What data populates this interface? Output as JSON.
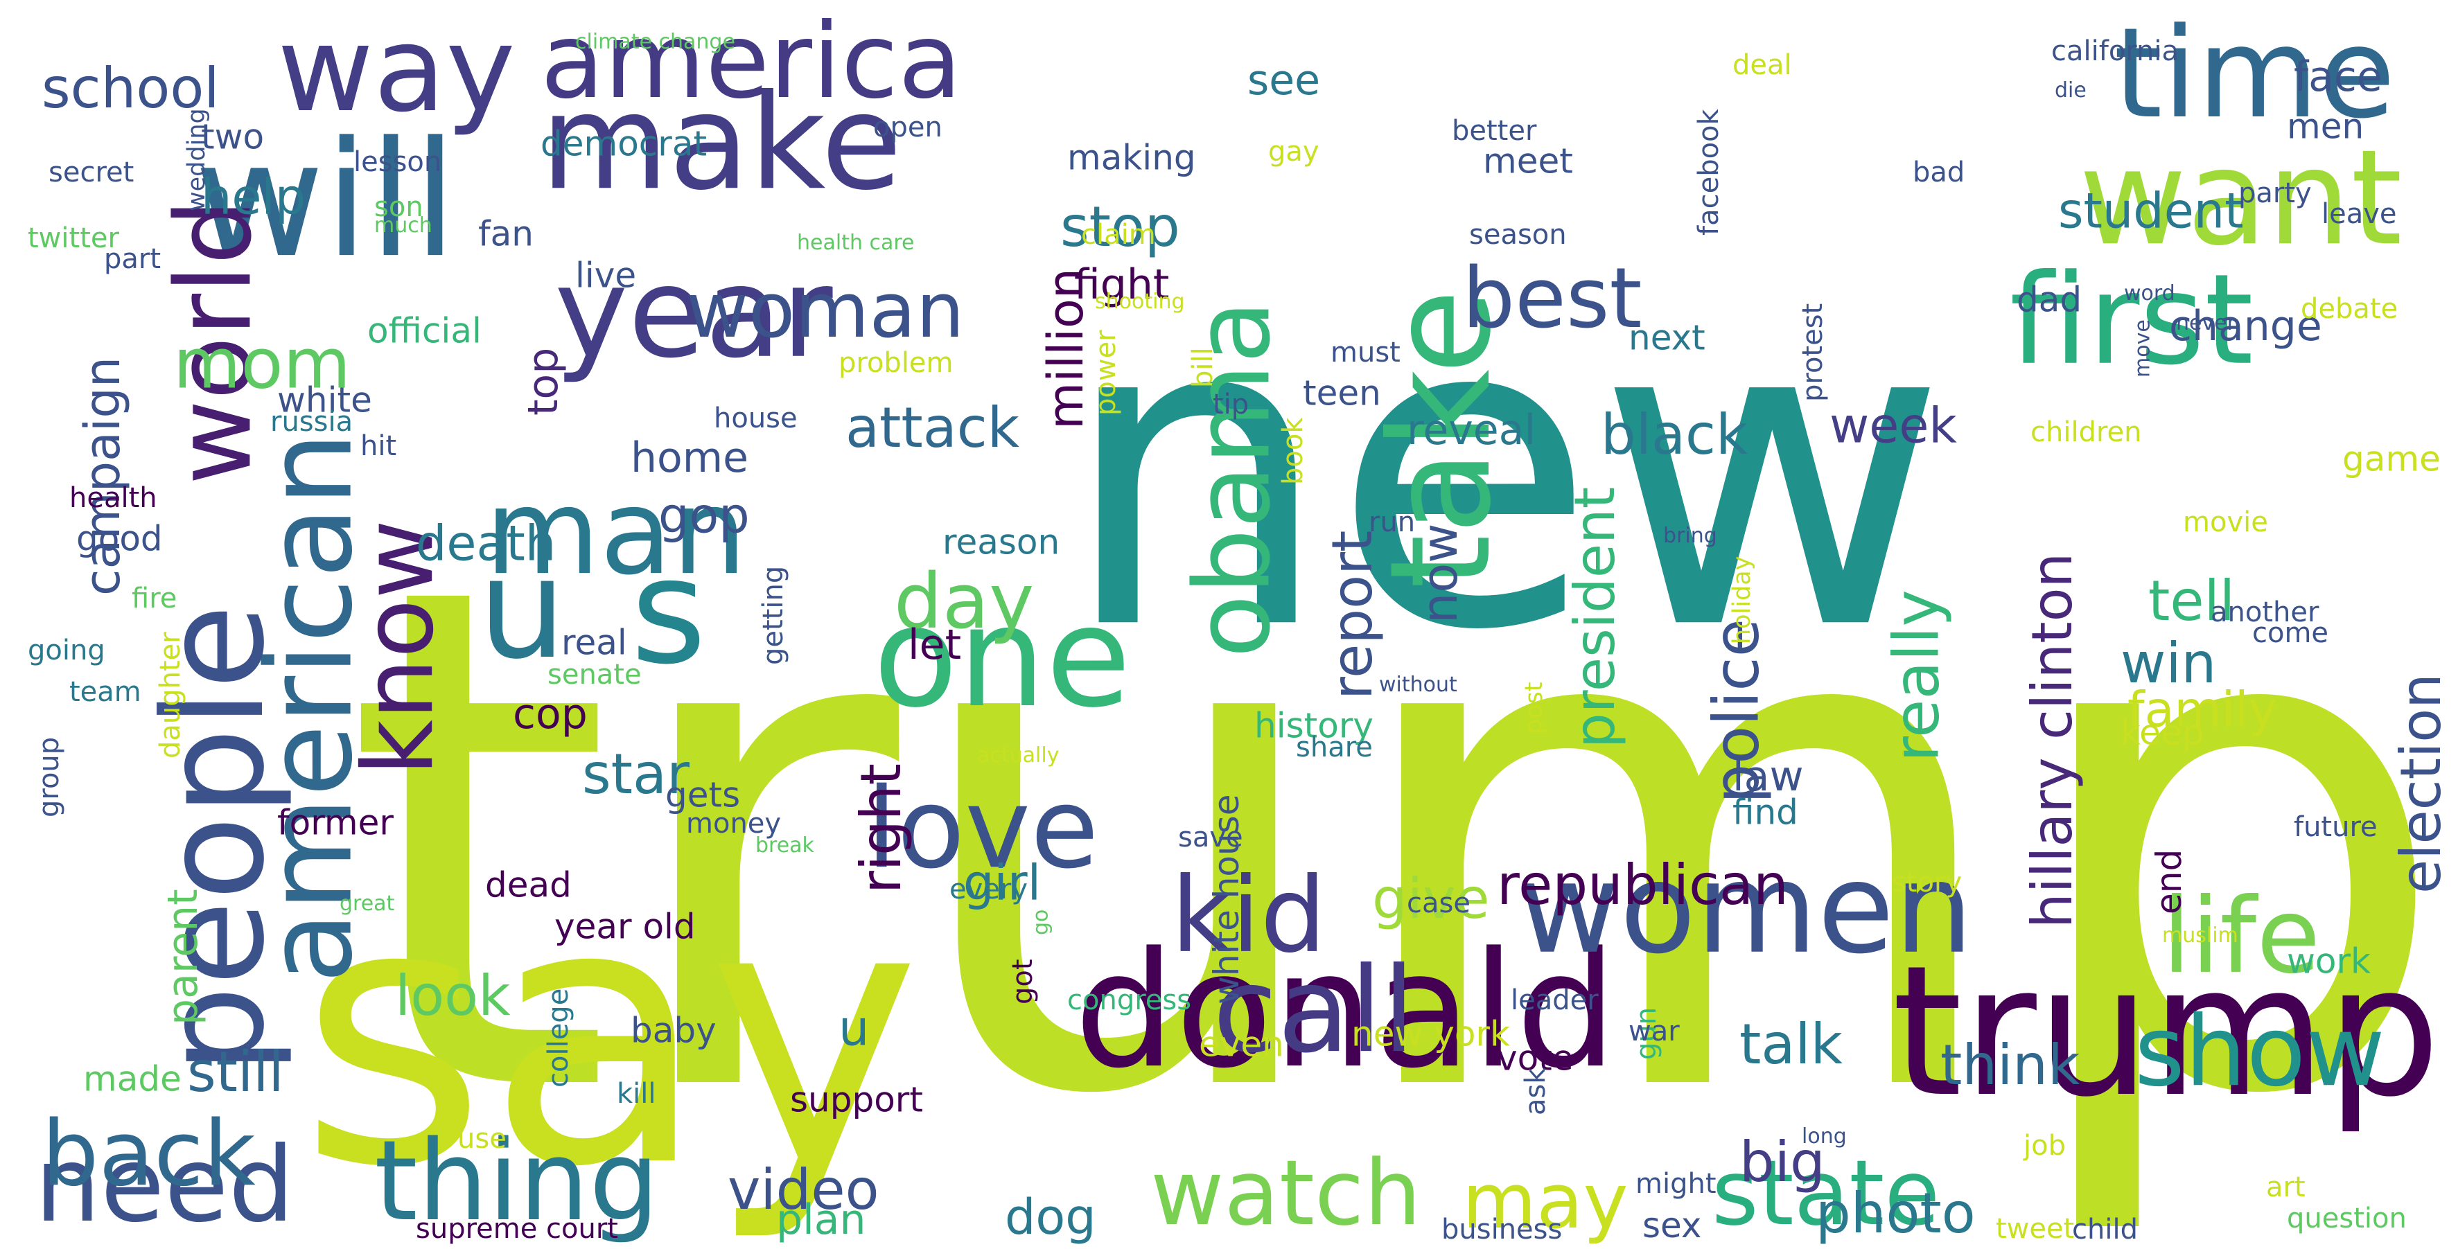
{
  "words": [
    {
      "text": "trump",
      "color": "#bddf26"
    },
    {
      "text": "new",
      "color": "#21918c"
    },
    {
      "text": "say",
      "color": "#c8e020"
    },
    {
      "text": "donald",
      "color": "#440154"
    },
    {
      "text": "trump",
      "color": "#440154"
    },
    {
      "text": "will",
      "color": "#31688e"
    },
    {
      "text": "way",
      "color": "#433e85"
    },
    {
      "text": "make",
      "color": "#433e85"
    },
    {
      "text": "time",
      "color": "#31688e"
    },
    {
      "text": "want",
      "color": "#a0da39"
    },
    {
      "text": "first",
      "color": "#29af7f"
    },
    {
      "text": "year",
      "color": "#433e85"
    },
    {
      "text": "america",
      "color": "#443b84"
    },
    {
      "text": "american",
      "color": "#31688e"
    },
    {
      "text": "people",
      "color": "#3b528b"
    },
    {
      "text": "world",
      "color": "#481f70"
    },
    {
      "text": "man",
      "color": "#2a788e"
    },
    {
      "text": "u",
      "color": "#2a788e"
    },
    {
      "text": "s",
      "color": "#25858e"
    },
    {
      "text": "one",
      "color": "#35b779"
    },
    {
      "text": "love",
      "color": "#3b528b"
    },
    {
      "text": "take",
      "color": "#35b779"
    },
    {
      "text": "obama",
      "color": "#35b779"
    },
    {
      "text": "women",
      "color": "#3b528b"
    },
    {
      "text": "call",
      "color": "#443b84"
    },
    {
      "text": "kid",
      "color": "#433e85"
    },
    {
      "text": "need",
      "color": "#3b528b"
    },
    {
      "text": "thing",
      "color": "#2a788e"
    },
    {
      "text": "back",
      "color": "#31688e"
    },
    {
      "text": "know",
      "color": "#481f70"
    },
    {
      "text": "woman",
      "color": "#3b528b"
    },
    {
      "text": "best",
      "color": "#3b528b"
    },
    {
      "text": "show",
      "color": "#21918c"
    },
    {
      "text": "life",
      "color": "#7ad151"
    },
    {
      "text": "watch",
      "color": "#7ad151"
    },
    {
      "text": "state",
      "color": "#29af7f"
    },
    {
      "text": "day",
      "color": "#5ec962"
    },
    {
      "text": "mom",
      "color": "#5ec962"
    },
    {
      "text": "school",
      "color": "#3b528b"
    },
    {
      "text": "campaign",
      "color": "#3b528b"
    },
    {
      "text": "parent",
      "color": "#5ec962"
    },
    {
      "text": "still",
      "color": "#31688e"
    },
    {
      "text": "look",
      "color": "#5ec962"
    },
    {
      "text": "video",
      "color": "#3b528b"
    },
    {
      "text": "may",
      "color": "#c8e020"
    },
    {
      "text": "photo",
      "color": "#2a788e"
    },
    {
      "text": "republican",
      "color": "#440154"
    },
    {
      "text": "hillary clinton",
      "color": "#482878"
    },
    {
      "text": "police",
      "color": "#3b528b"
    },
    {
      "text": "election",
      "color": "#3b528b"
    },
    {
      "text": "president",
      "color": "#35b779"
    },
    {
      "text": "report",
      "color": "#3b528b"
    },
    {
      "text": "really",
      "color": "#35b779"
    },
    {
      "text": "million",
      "color": "#440154"
    },
    {
      "text": "attack",
      "color": "#31688e"
    },
    {
      "text": "death",
      "color": "#2a788e"
    },
    {
      "text": "star",
      "color": "#2a788e"
    },
    {
      "text": "right",
      "color": "#440154"
    },
    {
      "text": "black",
      "color": "#2a788e"
    },
    {
      "text": "week",
      "color": "#433e85"
    },
    {
      "text": "tell",
      "color": "#35b779"
    },
    {
      "text": "win",
      "color": "#2a788e"
    },
    {
      "text": "family",
      "color": "#c8e020"
    },
    {
      "text": "talk",
      "color": "#2a788e"
    },
    {
      "text": "think",
      "color": "#31688e"
    },
    {
      "text": "big",
      "color": "#433e85"
    },
    {
      "text": "dog",
      "color": "#2a788e"
    },
    {
      "text": "give",
      "color": "#a0da39"
    },
    {
      "text": "help",
      "color": "#2a788e"
    },
    {
      "text": "stop",
      "color": "#2a788e"
    },
    {
      "text": "student",
      "color": "#2a788e"
    },
    {
      "text": "face",
      "color": "#3b528b"
    },
    {
      "text": "gop",
      "color": "#3b528b"
    },
    {
      "text": "home",
      "color": "#3b528b"
    },
    {
      "text": "now",
      "color": "#3b528b"
    },
    {
      "text": "girl",
      "color": "#2a788e"
    },
    {
      "text": "u",
      "color": "#2a788e"
    },
    {
      "text": "fight",
      "color": "#440154"
    },
    {
      "text": "change",
      "color": "#3b528b"
    },
    {
      "text": "see",
      "color": "#2a788e"
    },
    {
      "text": "two",
      "color": "#3b528b"
    },
    {
      "text": "democrat",
      "color": "#2a788e"
    },
    {
      "text": "making",
      "color": "#3b528b"
    },
    {
      "text": "meet",
      "color": "#3b528b"
    },
    {
      "text": "men",
      "color": "#3b528b"
    },
    {
      "text": "fan",
      "color": "#3b528b"
    },
    {
      "text": "live",
      "color": "#3b528b"
    },
    {
      "text": "official",
      "color": "#35b779"
    },
    {
      "text": "white",
      "color": "#3b528b"
    },
    {
      "text": "top",
      "color": "#482878"
    },
    {
      "text": "good",
      "color": "#3b528b"
    },
    {
      "text": "reveal",
      "color": "#2a788e"
    },
    {
      "text": "next",
      "color": "#2a788e"
    },
    {
      "text": "teen",
      "color": "#3b528b"
    },
    {
      "text": "must",
      "color": "#3b528b"
    },
    {
      "text": "dad",
      "color": "#3b528b"
    },
    {
      "text": "game",
      "color": "#c8e020"
    },
    {
      "text": "reason",
      "color": "#2a788e"
    },
    {
      "text": "let",
      "color": "#440154"
    },
    {
      "text": "getting",
      "color": "#3b528b"
    },
    {
      "text": "history",
      "color": "#35b779"
    },
    {
      "text": "share",
      "color": "#2a788e"
    },
    {
      "text": "cop",
      "color": "#440154"
    },
    {
      "text": "real",
      "color": "#3b528b"
    },
    {
      "text": "gets",
      "color": "#3b528b"
    },
    {
      "text": "former",
      "color": "#440154"
    },
    {
      "text": "white house",
      "color": "#3b528b"
    },
    {
      "text": "law",
      "color": "#3b528b"
    },
    {
      "text": "find",
      "color": "#2a788e"
    },
    {
      "text": "keep",
      "color": "#c8e020"
    },
    {
      "text": "work",
      "color": "#35b779"
    },
    {
      "text": "end",
      "color": "#440154"
    },
    {
      "text": "dead",
      "color": "#440154"
    },
    {
      "text": "year old",
      "color": "#440154"
    },
    {
      "text": "baby",
      "color": "#3b528b"
    },
    {
      "text": "support",
      "color": "#440154"
    },
    {
      "text": "plan",
      "color": "#35b779"
    },
    {
      "text": "even",
      "color": "#c8e020"
    },
    {
      "text": "vote",
      "color": "#440154"
    },
    {
      "text": "new york",
      "color": "#c8e020"
    },
    {
      "text": "gun",
      "color": "#35b779"
    },
    {
      "text": "college",
      "color": "#2a788e"
    },
    {
      "text": "made",
      "color": "#5ec962"
    },
    {
      "text": "sex",
      "color": "#3b528b"
    },
    {
      "text": "tweet",
      "color": "#c8e020"
    },
    {
      "text": "protest",
      "color": "#3b528b"
    },
    {
      "text": "another",
      "color": "#3b528b"
    },
    {
      "text": "come",
      "color": "#3b528b"
    },
    {
      "text": "movie",
      "color": "#c8e020"
    },
    {
      "text": "children",
      "color": "#c8e020"
    },
    {
      "text": "debate",
      "color": "#c8e020"
    },
    {
      "text": "future",
      "color": "#3b528b"
    },
    {
      "text": "story",
      "color": "#c8e020"
    },
    {
      "text": "case",
      "color": "#3b528b"
    },
    {
      "text": "got",
      "color": "#440154"
    },
    {
      "text": "go",
      "color": "#5ec962"
    },
    {
      "text": "every",
      "color": "#2a788e"
    },
    {
      "text": "save",
      "color": "#3b528b"
    },
    {
      "text": "money",
      "color": "#3b528b"
    },
    {
      "text": "congress",
      "color": "#35b779"
    },
    {
      "text": "leader",
      "color": "#3b528b"
    },
    {
      "text": "war",
      "color": "#3b528b"
    },
    {
      "text": "ask",
      "color": "#3b528b"
    },
    {
      "text": "might",
      "color": "#3b528b"
    },
    {
      "text": "job",
      "color": "#c8e020"
    },
    {
      "text": "art",
      "color": "#c8e020"
    },
    {
      "text": "question",
      "color": "#5ec962"
    },
    {
      "text": "child",
      "color": "#3b528b"
    },
    {
      "text": "business",
      "color": "#3b528b"
    },
    {
      "text": "supreme court",
      "color": "#440154"
    },
    {
      "text": "use",
      "color": "#c8e020"
    },
    {
      "text": "kill",
      "color": "#2a788e"
    },
    {
      "text": "great",
      "color": "#5ec962"
    },
    {
      "text": "break",
      "color": "#5ec962"
    },
    {
      "text": "group",
      "color": "#3b528b"
    },
    {
      "text": "daughter",
      "color": "#c8e020"
    },
    {
      "text": "team",
      "color": "#2a788e"
    },
    {
      "text": "senate",
      "color": "#5ec962"
    },
    {
      "text": "going",
      "color": "#2a788e"
    },
    {
      "text": "fire",
      "color": "#5ec962"
    },
    {
      "text": "health",
      "color": "#440154"
    },
    {
      "text": "russia",
      "color": "#2a788e"
    },
    {
      "text": "hit",
      "color": "#3b528b"
    },
    {
      "text": "house",
      "color": "#3b528b"
    },
    {
      "text": "problem",
      "color": "#c8e020"
    },
    {
      "text": "bill",
      "color": "#c8e020"
    },
    {
      "text": "power",
      "color": "#c8e020"
    },
    {
      "text": "book",
      "color": "#c8e020"
    },
    {
      "text": "tip",
      "color": "#3b528b"
    },
    {
      "text": "run",
      "color": "#3b528b"
    },
    {
      "text": "shooting",
      "color": "#c8e020"
    },
    {
      "text": "claim",
      "color": "#c8e020"
    },
    {
      "text": "health care",
      "color": "#5ec962"
    },
    {
      "text": "gay",
      "color": "#c8e020"
    },
    {
      "text": "open",
      "color": "#3b528b"
    },
    {
      "text": "lesson",
      "color": "#3b528b"
    },
    {
      "text": "son",
      "color": "#5ec962"
    },
    {
      "text": "much",
      "color": "#5ec962"
    },
    {
      "text": "part",
      "color": "#3b528b"
    },
    {
      "text": "twitter",
      "color": "#5ec962"
    },
    {
      "text": "secret",
      "color": "#3b528b"
    },
    {
      "text": "wedding",
      "color": "#3b528b"
    },
    {
      "text": "climate change",
      "color": "#5ec962"
    },
    {
      "text": "deal",
      "color": "#c8e020"
    },
    {
      "text": "california",
      "color": "#3b528b"
    },
    {
      "text": "die",
      "color": "#3b528b"
    },
    {
      "text": "bad",
      "color": "#3b528b"
    },
    {
      "text": "better",
      "color": "#3b528b"
    },
    {
      "text": "party",
      "color": "#3b528b"
    },
    {
      "text": "leave",
      "color": "#3b528b"
    },
    {
      "text": "facebook",
      "color": "#3b528b"
    },
    {
      "text": "season",
      "color": "#3b528b"
    },
    {
      "text": "word",
      "color": "#3b528b"
    },
    {
      "text": "never",
      "color": "#3b528b"
    },
    {
      "text": "move",
      "color": "#3b528b"
    },
    {
      "text": "bring",
      "color": "#3b528b"
    },
    {
      "text": "without",
      "color": "#3b528b"
    },
    {
      "text": "holiday",
      "color": "#c8e020"
    },
    {
      "text": "post",
      "color": "#c8e020"
    },
    {
      "text": "actually",
      "color": "#c8e020"
    },
    {
      "text": "long",
      "color": "#3b528b"
    },
    {
      "text": "muslim",
      "color": "#c8e020"
    }
  ]
}
